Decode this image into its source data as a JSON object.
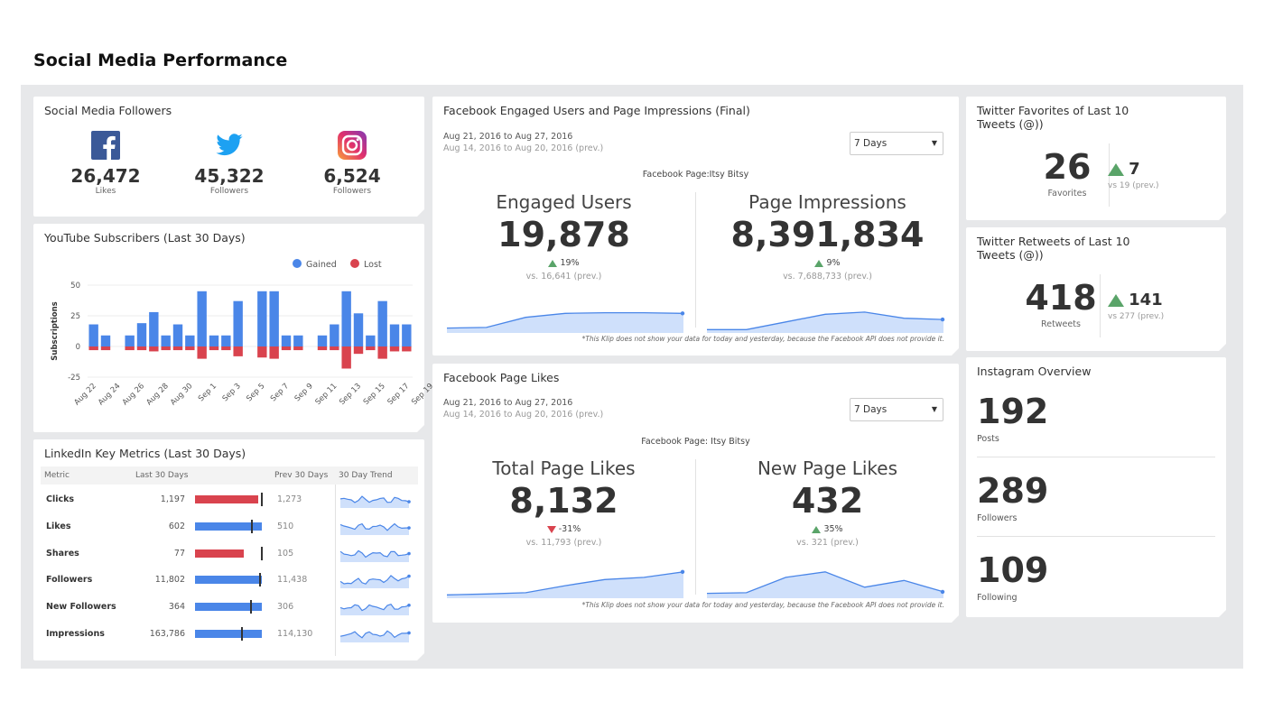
{
  "page_title": "Social Media Performance",
  "followers": {
    "title": "Social Media Followers",
    "items": [
      {
        "icon": "facebook-icon",
        "value": "26,472",
        "label": "Likes",
        "color": "#3b5998"
      },
      {
        "icon": "twitter-icon",
        "value": "45,322",
        "label": "Followers",
        "color": "#1da1f2"
      },
      {
        "icon": "instagram-icon",
        "value": "6,524",
        "label": "Followers",
        "color": "#c13584"
      }
    ]
  },
  "youtube": {
    "title": "YouTube Subscribers (Last 30 Days)",
    "chart_data": {
      "type": "bar",
      "ylabel": "Subscriptions",
      "ylim": [
        -25,
        50
      ],
      "yticks": [
        "50",
        "25",
        "0",
        "-25"
      ],
      "xticks": [
        "Aug 22",
        "Aug 24",
        "Aug 26",
        "Aug 28",
        "Aug 30",
        "Sep 1",
        "Sep 3",
        "Sep 5",
        "Sep 7",
        "Sep 9",
        "Sep 11",
        "Sep 13",
        "Sep 15",
        "Sep 17",
        "Sep 19"
      ],
      "legend_position": "top-right",
      "series": [
        {
          "name": "Gained",
          "color": "#4a86e8",
          "values": [
            18,
            9,
            0,
            9,
            19,
            28,
            9,
            18,
            9,
            45,
            9,
            9,
            37,
            0,
            45,
            45,
            9,
            9,
            0,
            9,
            18,
            45,
            27,
            9,
            37,
            18,
            18
          ]
        },
        {
          "name": "Lost",
          "color": "#d9434e",
          "values": [
            -3,
            -3,
            0,
            -3,
            -3,
            -4,
            -3,
            -3,
            -3,
            -10,
            -3,
            -3,
            -8,
            0,
            -9,
            -10,
            -3,
            -3,
            0,
            -3,
            -3,
            -18,
            -6,
            -3,
            -10,
            -4,
            -4
          ]
        }
      ]
    }
  },
  "linkedin": {
    "title": "LinkedIn Key Metrics (Last 30 Days)",
    "headers": {
      "metric": "Metric",
      "last30": "Last 30 Days",
      "prev30": "Prev 30 Days",
      "trend": "30 Day Trend"
    },
    "rows": [
      {
        "metric": "Clicks",
        "current": "1,197",
        "prev": "1,273",
        "bar_fraction": 0.94,
        "marker_fraction": 1.0,
        "bar_color": "#d9434e"
      },
      {
        "metric": "Likes",
        "current": "602",
        "prev": "510",
        "bar_fraction": 1.0,
        "marker_fraction": 0.85,
        "bar_color": "#4a86e8"
      },
      {
        "metric": "Shares",
        "current": "77",
        "prev": "105",
        "bar_fraction": 0.73,
        "marker_fraction": 1.0,
        "bar_color": "#d9434e"
      },
      {
        "metric": "Followers",
        "current": "11,802",
        "prev": "11,438",
        "bar_fraction": 1.0,
        "marker_fraction": 0.97,
        "bar_color": "#4a86e8"
      },
      {
        "metric": "New Followers",
        "current": "364",
        "prev": "306",
        "bar_fraction": 1.0,
        "marker_fraction": 0.84,
        "bar_color": "#4a86e8"
      },
      {
        "metric": "Impressions",
        "current": "163,786",
        "prev": "114,130",
        "bar_fraction": 1.0,
        "marker_fraction": 0.7,
        "bar_color": "#4a86e8"
      }
    ]
  },
  "fb_engaged": {
    "title": "Facebook Engaged Users and Page Impressions (Final)",
    "date_range": "Aug 21, 2016 to Aug 27, 2016",
    "prev_range": "Aug 14, 2016 to Aug 20, 2016 (prev.)",
    "dropdown": "7 Days",
    "page_label": "Facebook Page:Itsy Bitsy",
    "left": {
      "label": "Engaged Users",
      "value": "19,878",
      "change": "19%",
      "direction": "up",
      "vs": "vs. 16,641 (prev.)",
      "trend": [
        10,
        12,
        45,
        58,
        60,
        60,
        58
      ]
    },
    "right": {
      "label": "Page Impressions",
      "value": "8,391,834",
      "change": "9%",
      "direction": "up",
      "vs": "vs. 7,688,733 (prev.)",
      "trend": [
        5,
        5,
        30,
        55,
        62,
        42,
        38
      ]
    },
    "note": "*This Klip does not show your data for today and yesterday, because the Facebook API does not provide it."
  },
  "fb_likes": {
    "title": "Facebook Page Likes",
    "date_range": "Aug 21, 2016 to Aug 27, 2016",
    "prev_range": "Aug 14, 2016 to Aug 20, 2016 (prev.)",
    "dropdown": "7 Days",
    "page_label": "Facebook Page: Itsy Bitsy",
    "left": {
      "label": "Total Page Likes",
      "value": "8,132",
      "change": "-31%",
      "direction": "down",
      "vs": "vs. 11,793 (prev.)",
      "trend": [
        5,
        8,
        12,
        35,
        55,
        62,
        80
      ]
    },
    "right": {
      "label": "New Page Likes",
      "value": "432",
      "change": "35%",
      "direction": "up",
      "vs": "vs. 321 (prev.)",
      "trend": [
        10,
        12,
        62,
        80,
        30,
        52,
        15
      ]
    },
    "note": "*This Klip does not show your data for today and yesterday, because the Facebook API does not provide it."
  },
  "tw_fav": {
    "title": "Twitter Favorites of Last 10 Tweets (@))",
    "value": "26",
    "label": "Favorites",
    "change": "7",
    "vs": "vs 19 (prev.)"
  },
  "tw_rt": {
    "title": "Twitter Retweets of Last 10 Tweets (@))",
    "value": "418",
    "label": "Retweets",
    "change": "141",
    "vs": "vs 277 (prev.)"
  },
  "instagram": {
    "title": "Instagram Overview",
    "items": [
      {
        "value": "192",
        "label": "Posts"
      },
      {
        "value": "289",
        "label": "Followers"
      },
      {
        "value": "109",
        "label": "Following"
      }
    ]
  },
  "colors": {
    "blue": "#4a86e8",
    "red": "#d9434e",
    "green": "#5aa469",
    "area": "#cfe0fb",
    "line": "#4a86e8"
  }
}
